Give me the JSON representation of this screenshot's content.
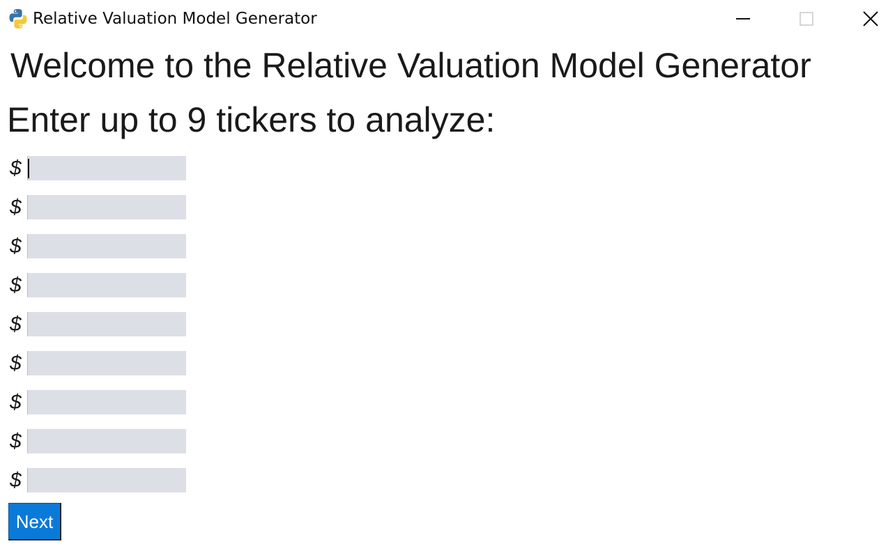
{
  "window": {
    "title": "Relative Valuation Model Generator",
    "icon": "python-icon",
    "controls": [
      "minimize-icon",
      "maximize-icon",
      "close-icon"
    ]
  },
  "main": {
    "heading": "Welcome to the Relative Valuation Model Generator",
    "prompt": "Enter up to 9 tickers to analyze:",
    "ticker_prefix": "$",
    "tickers": [
      {
        "value": ""
      },
      {
        "value": ""
      },
      {
        "value": ""
      },
      {
        "value": ""
      },
      {
        "value": ""
      },
      {
        "value": ""
      },
      {
        "value": ""
      },
      {
        "value": ""
      },
      {
        "value": ""
      }
    ],
    "next_label": "Next"
  },
  "colors": {
    "input_bg": "#dcdfe6",
    "button_bg": "#0a7ad9",
    "button_text": "#ffffff"
  }
}
